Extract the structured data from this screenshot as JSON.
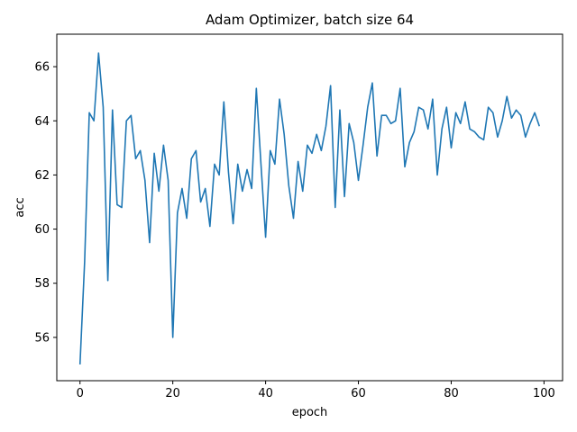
{
  "chart_data": {
    "type": "line",
    "title": "Adam Optimizer, batch size 64",
    "xlabel": "epoch",
    "ylabel": "acc",
    "xlim": [
      -5,
      104
    ],
    "ylim": [
      54.4,
      67.2
    ],
    "x_ticks": [
      0,
      20,
      40,
      60,
      80,
      100
    ],
    "y_ticks": [
      56,
      58,
      60,
      62,
      64,
      66
    ],
    "grid": false,
    "legend": "none",
    "line_color": "#1f77b4",
    "series": [
      {
        "x": [
          0,
          1,
          2,
          3,
          4,
          5,
          6,
          7,
          8,
          9,
          10,
          11,
          12,
          13,
          14,
          15,
          16,
          17,
          18,
          19,
          20,
          21,
          22,
          23,
          24,
          25,
          26,
          27,
          28,
          29,
          30,
          31,
          32,
          33,
          34,
          35,
          36,
          37,
          38,
          39,
          40,
          41,
          42,
          43,
          44,
          45,
          46,
          47,
          48,
          49,
          50,
          51,
          52,
          53,
          54,
          55,
          56,
          57,
          58,
          59,
          60,
          61,
          62,
          63,
          64,
          65,
          66,
          67,
          68,
          69,
          70,
          71,
          72,
          73,
          74,
          75,
          76,
          77,
          78,
          79,
          80,
          81,
          82,
          83,
          84,
          85,
          86,
          87,
          88,
          89,
          90,
          91,
          92,
          93,
          94,
          95,
          96,
          97,
          98,
          99
        ],
        "values": [
          55.0,
          58.8,
          64.3,
          64.0,
          66.5,
          64.5,
          58.1,
          64.4,
          60.9,
          60.8,
          64.0,
          64.2,
          62.6,
          62.9,
          61.8,
          59.5,
          62.8,
          61.4,
          63.1,
          61.8,
          56.0,
          60.6,
          61.5,
          60.4,
          62.6,
          62.9,
          61.0,
          61.5,
          60.1,
          62.4,
          62.0,
          64.7,
          62.1,
          60.2,
          62.4,
          61.4,
          62.2,
          61.5,
          65.2,
          62.4,
          59.7,
          62.9,
          62.4,
          64.8,
          63.5,
          61.6,
          60.4,
          62.5,
          61.4,
          63.1,
          62.8,
          63.5,
          62.9,
          63.8,
          65.3,
          60.8,
          64.4,
          61.2,
          63.9,
          63.2,
          61.8,
          63.1,
          64.5,
          65.4,
          62.7,
          64.2,
          64.2,
          63.9,
          64.0,
          65.2,
          62.3,
          63.2,
          63.6,
          64.5,
          64.4,
          63.7,
          64.8,
          62.0,
          63.7,
          64.5,
          63.0,
          64.3,
          63.9,
          64.7,
          63.7,
          63.6,
          63.4,
          63.3,
          64.5,
          64.3,
          63.4,
          64.0,
          64.9,
          64.1,
          64.4,
          64.2,
          63.4,
          63.9,
          64.3,
          63.8
        ]
      }
    ]
  }
}
